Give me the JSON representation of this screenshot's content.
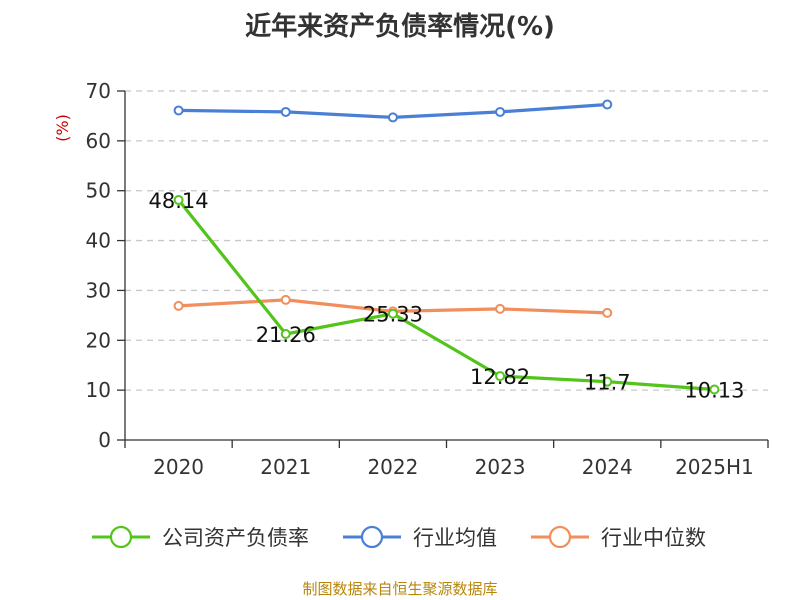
{
  "chart_data": {
    "type": "line",
    "title": "近年来资产负债率情况(%)",
    "ylabel": "(%)",
    "categories": [
      "2020",
      "2021",
      "2022",
      "2023",
      "2024",
      "2025H1"
    ],
    "ylim": [
      0,
      70
    ],
    "yticks": [
      0,
      10,
      20,
      30,
      40,
      50,
      60,
      70
    ],
    "grid": "horizontal-dashed",
    "legend_position": "bottom",
    "series": [
      {
        "name": "公司资产负债率",
        "color": "#52c41a",
        "values": [
          48.14,
          21.26,
          25.33,
          12.82,
          11.7,
          10.13
        ],
        "labels": [
          "48.14",
          "21.26",
          "25.33",
          "12.82",
          "11.7",
          "10.13"
        ]
      },
      {
        "name": "行业均值",
        "color": "#4a7fd6",
        "values": [
          66.1,
          65.8,
          64.7,
          65.8,
          67.3,
          null
        ]
      },
      {
        "name": "行业中位数",
        "color": "#f28e5b",
        "values": [
          26.9,
          28.1,
          25.8,
          26.3,
          25.5,
          null
        ]
      }
    ]
  },
  "source_note": "制图数据来自恒生聚源数据库"
}
